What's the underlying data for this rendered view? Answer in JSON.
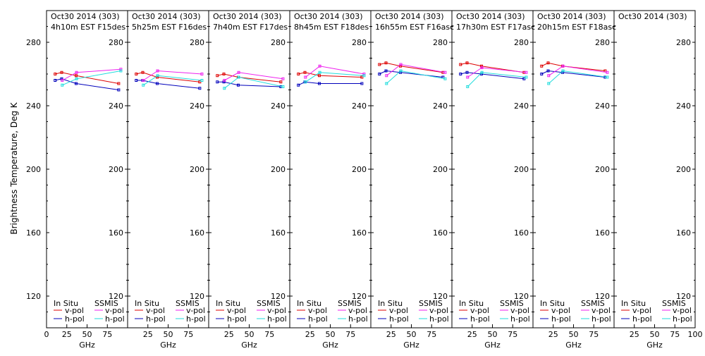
{
  "chart_data": {
    "type": "line",
    "ylabel": "Brightness Temperature, Deg K",
    "xlabel": "GHz",
    "xlim": [
      0,
      100
    ],
    "ylim": [
      100,
      300
    ],
    "xticks": [
      "0",
      "25",
      "50",
      "75",
      "100"
    ],
    "yticks": [
      "120",
      "160",
      "200",
      "240",
      "280"
    ],
    "x_frequencies": [
      10.65,
      18.7,
      36.5,
      89.0
    ],
    "ssmis_frequencies": [
      19.35,
      37.0,
      91.655
    ],
    "legend": {
      "in_situ_header": "In Situ",
      "ssmis_header": "SSMIS",
      "v_pol": "v-pol",
      "h_pol": "h-pol"
    },
    "colors": {
      "insitu_v": "#dd0000",
      "insitu_h": "#0000bb",
      "ssmis_v": "#ee22ee",
      "ssmis_h": "#22dddd"
    },
    "panels": [
      {
        "title1": "Oct30 2014 (303)",
        "title2": "4h10m EST F15des",
        "insitu_v": [
          260,
          261,
          259,
          254
        ],
        "insitu_h": [
          256,
          257,
          254,
          250
        ],
        "ssmis_v": [
          256,
          261,
          263
        ],
        "ssmis_h": [
          253,
          257,
          262
        ]
      },
      {
        "title1": "Oct30 2014 (303)",
        "title2": "5h25m EST F16des",
        "insitu_v": [
          260,
          261,
          258,
          255
        ],
        "insitu_h": [
          256,
          256,
          254,
          251
        ],
        "ssmis_v": [
          256,
          262,
          260
        ],
        "ssmis_h": [
          253,
          259,
          256
        ]
      },
      {
        "title1": "Oct30 2014 (303)",
        "title2": "7h40m EST F17des",
        "insitu_v": [
          259,
          260,
          258,
          255
        ],
        "insitu_h": [
          255,
          255,
          253,
          252
        ],
        "ssmis_v": [
          256,
          261,
          257
        ],
        "ssmis_h": [
          251,
          258,
          252
        ]
      },
      {
        "title1": "Oct30 2014 (303)",
        "title2": "8h45m EST F18des",
        "insitu_v": [
          260,
          261,
          259,
          258
        ],
        "insitu_h": [
          253,
          255,
          254,
          254
        ],
        "ssmis_v": [
          258,
          265,
          260
        ],
        "ssmis_h": [
          255,
          261,
          259
        ]
      },
      {
        "title1": "Oct30 2014 (303)",
        "title2": "16h55m EST F16asc",
        "insitu_v": [
          266,
          267,
          265,
          261
        ],
        "insitu_h": [
          260,
          262,
          261,
          258
        ],
        "ssmis_v": [
          259,
          266,
          261
        ],
        "ssmis_h": [
          254,
          262,
          257
        ]
      },
      {
        "title1": "Oct30 2014 (303)",
        "title2": "17h30m EST F17asc",
        "insitu_v": [
          266,
          267,
          265,
          261
        ],
        "insitu_h": [
          260,
          261,
          260,
          257
        ],
        "ssmis_v": [
          258,
          264,
          261
        ],
        "ssmis_h": [
          252,
          261,
          258
        ]
      },
      {
        "title1": "Oct30 2014 (303)",
        "title2": "20h15m EST F18asc",
        "insitu_v": [
          265,
          267,
          265,
          262
        ],
        "insitu_h": [
          260,
          262,
          261,
          258
        ],
        "ssmis_v": [
          259,
          265,
          261
        ],
        "ssmis_h": [
          254,
          262,
          258
        ]
      },
      {
        "title1": "Oct30 2014 (303)",
        "title2": "",
        "insitu_v": [],
        "insitu_h": [],
        "ssmis_v": [],
        "ssmis_h": []
      }
    ]
  }
}
